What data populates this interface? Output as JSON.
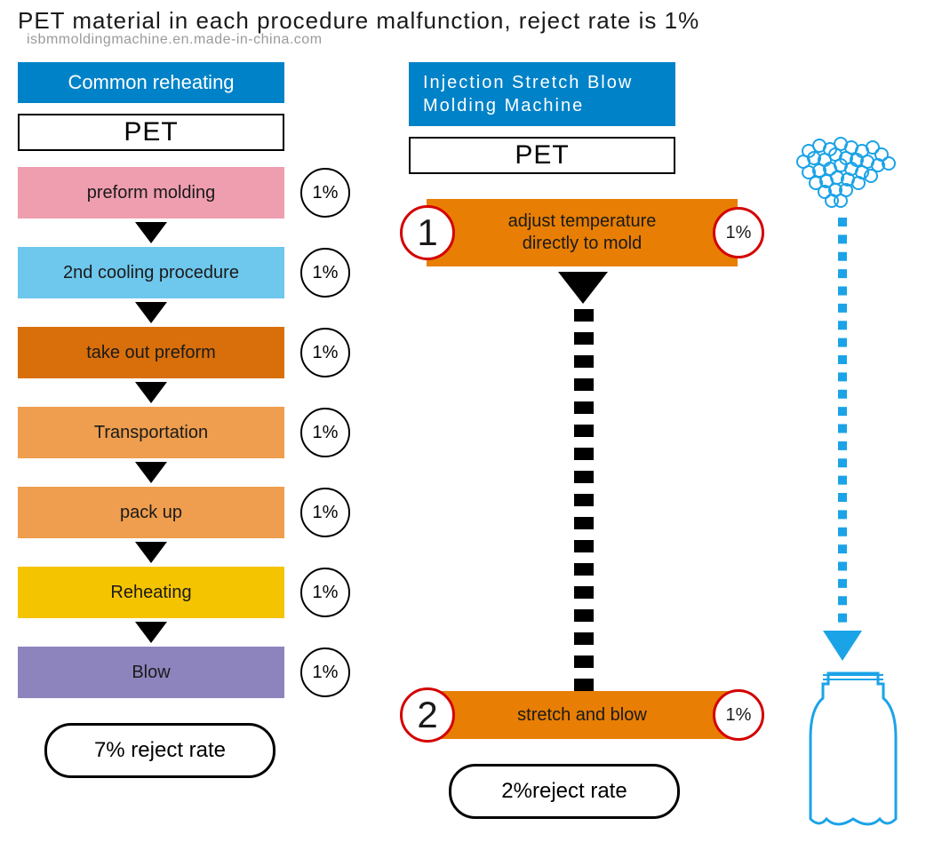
{
  "title": "PET material in each procedure malfunction, reject rate is 1%",
  "watermark": "isbmmoldingmachine.en.made-in-china.com",
  "colors": {
    "blue_header": "#0082c8",
    "pink": "#ef9eb0",
    "lightblue": "#6ec7ec",
    "orange_dark": "#d86f0b",
    "orange_mid": "#ee9e4e",
    "yellow": "#f5c400",
    "purple": "#8d84bd",
    "big_orange": "#e87e04",
    "red_ring": "#d40000",
    "dotted_blue": "#1ba3e8",
    "text": "#1a1a1a",
    "white": "#ffffff",
    "black": "#000000"
  },
  "left": {
    "header": "Common reheating",
    "material": "PET",
    "steps": [
      {
        "label": "preform molding",
        "pct": "1%",
        "color": "#ef9eb0"
      },
      {
        "label": "2nd cooling procedure",
        "pct": "1%",
        "color": "#6ec7ec"
      },
      {
        "label": "take out preform",
        "pct": "1%",
        "color": "#d86f0b"
      },
      {
        "label": "Transportation",
        "pct": "1%",
        "color": "#ee9e4e"
      },
      {
        "label": "pack up",
        "pct": "1%",
        "color": "#ee9e4e"
      },
      {
        "label": "Reheating",
        "pct": "1%",
        "color": "#f5c400"
      },
      {
        "label": "Blow",
        "pct": "1%",
        "color": "#8d84bd"
      }
    ],
    "result": "7% reject rate"
  },
  "right": {
    "header_line1": "Injection  Stretch  Blow",
    "header_line2": "Molding  Machine",
    "material": "PET",
    "steps": [
      {
        "num": "1",
        "label_line1": "adjust temperature",
        "label_line2": "directly to mold",
        "pct": "1%"
      },
      {
        "num": "2",
        "label_line1": "stretch and blow",
        "label_line2": "",
        "pct": "1%"
      }
    ],
    "dash_count": 17,
    "result": "2%reject rate"
  },
  "graphic": {
    "dotted_segments": 24,
    "pellet_color": "#1ba3e8",
    "bottle_outline": "#1ba3e8"
  }
}
